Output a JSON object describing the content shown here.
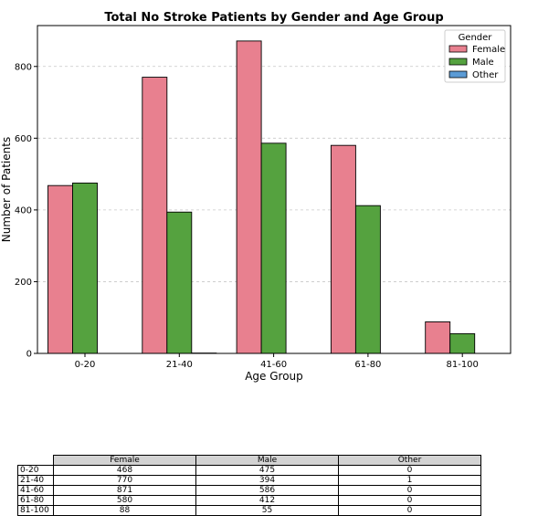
{
  "chart_data": {
    "type": "bar",
    "title": "Total No Stroke Patients by Gender and Age Group",
    "xlabel": "Age Group",
    "ylabel": "Number of Patients",
    "categories": [
      "0-20",
      "21-40",
      "41-60",
      "61-80",
      "81-100"
    ],
    "series": [
      {
        "name": "Female",
        "color": "#e8808f",
        "values": [
          468,
          770,
          871,
          580,
          88
        ]
      },
      {
        "name": "Male",
        "color": "#55a23f",
        "values": [
          475,
          394,
          586,
          412,
          55
        ]
      },
      {
        "name": "Other",
        "color": "#5b9bd5",
        "values": [
          0,
          1,
          0,
          0,
          0
        ]
      }
    ],
    "ylim": [
      0,
      914
    ],
    "yticks": [
      0,
      200,
      400,
      600,
      800
    ],
    "grid": "y-dashed",
    "legend": {
      "title": "Gender",
      "placement": "top-right"
    }
  },
  "table": {
    "columns": [
      "Female",
      "Male",
      "Other"
    ],
    "rows": [
      {
        "label": "0-20",
        "values": [
          "468",
          "475",
          "0"
        ]
      },
      {
        "label": "21-40",
        "values": [
          "770",
          "394",
          "1"
        ]
      },
      {
        "label": "41-60",
        "values": [
          "871",
          "586",
          "0"
        ]
      },
      {
        "label": "61-80",
        "values": [
          "580",
          "412",
          "0"
        ]
      },
      {
        "label": "81-100",
        "values": [
          "88",
          "55",
          "0"
        ]
      }
    ]
  }
}
